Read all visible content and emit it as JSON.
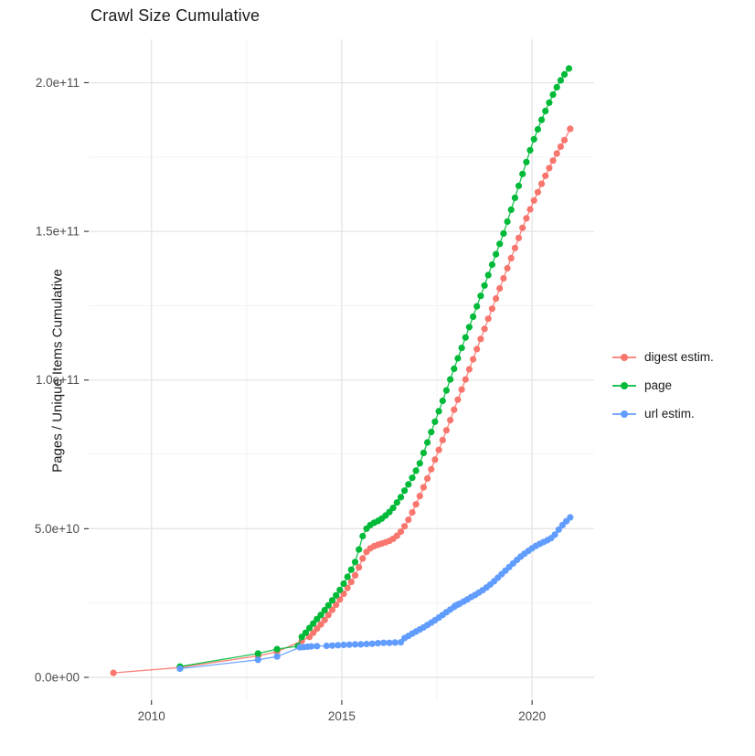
{
  "title": "Crawl Size Cumulative",
  "chart_data": {
    "type": "scatter",
    "title": "Crawl Size Cumulative",
    "xlabel": "",
    "ylabel": "Pages / Unique Items Cumulative",
    "legend_position": "right",
    "grid": true,
    "value_unit": "points given as [year, value_in_billions(1e9)]",
    "xlim": [
      2008.35,
      2021.63
    ],
    "ylim_e9": [
      -7.7,
      214.6
    ],
    "x_ticks": [
      {
        "v": 2010,
        "label": "2010"
      },
      {
        "v": 2015,
        "label": "2015"
      },
      {
        "v": 2020,
        "label": "2020"
      }
    ],
    "y_ticks": [
      {
        "v": 0,
        "label": "0.0e+00"
      },
      {
        "v": 50,
        "label": "5.0e+10"
      },
      {
        "v": 100,
        "label": "1.0e+11"
      },
      {
        "v": 150,
        "label": "1.5e+11"
      },
      {
        "v": 200,
        "label": "2.0e+11"
      }
    ],
    "x_minor": [
      2012.5,
      2017.5
    ],
    "y_minor_e9": [
      25,
      75,
      125,
      175
    ],
    "series": [
      {
        "name": "digest estim.",
        "color": "#F8766D",
        "points": [
          [
            2009.0,
            1.5
          ],
          [
            2010.75,
            3.3
          ],
          [
            2012.8,
            7.2
          ],
          [
            2013.3,
            8.6
          ],
          [
            2013.95,
            12.3
          ],
          [
            2014.15,
            13.6
          ],
          [
            2014.25,
            15.0
          ],
          [
            2014.35,
            16.4
          ],
          [
            2014.45,
            17.8
          ],
          [
            2014.55,
            19.3
          ],
          [
            2014.65,
            21.0
          ],
          [
            2014.75,
            22.7
          ],
          [
            2014.85,
            24.4
          ],
          [
            2014.95,
            26.2
          ],
          [
            2015.05,
            28.1
          ],
          [
            2015.15,
            30.1
          ],
          [
            2015.25,
            32.1
          ],
          [
            2015.35,
            34.3
          ],
          [
            2015.45,
            37.0
          ],
          [
            2015.55,
            40.0
          ],
          [
            2015.65,
            42.2
          ],
          [
            2015.75,
            43.4
          ],
          [
            2015.85,
            44.1
          ],
          [
            2015.95,
            44.6
          ],
          [
            2016.05,
            45.0
          ],
          [
            2016.15,
            45.4
          ],
          [
            2016.25,
            45.9
          ],
          [
            2016.35,
            46.6
          ],
          [
            2016.45,
            47.6
          ],
          [
            2016.55,
            49.0
          ],
          [
            2016.65,
            50.8
          ],
          [
            2016.75,
            53.0
          ],
          [
            2016.85,
            55.5
          ],
          [
            2016.95,
            58.2
          ],
          [
            2017.05,
            61.0
          ],
          [
            2017.15,
            63.9
          ],
          [
            2017.25,
            66.9
          ],
          [
            2017.35,
            70.0
          ],
          [
            2017.45,
            73.2
          ],
          [
            2017.55,
            76.5
          ],
          [
            2017.65,
            79.8
          ],
          [
            2017.75,
            83.1
          ],
          [
            2017.85,
            86.5
          ],
          [
            2017.95,
            90.0
          ],
          [
            2018.05,
            93.4
          ],
          [
            2018.15,
            96.8
          ],
          [
            2018.25,
            100.2
          ],
          [
            2018.35,
            103.6
          ],
          [
            2018.45,
            107.0
          ],
          [
            2018.55,
            110.4
          ],
          [
            2018.65,
            113.8
          ],
          [
            2018.75,
            117.2
          ],
          [
            2018.85,
            120.6
          ],
          [
            2018.95,
            124.0
          ],
          [
            2019.05,
            127.4
          ],
          [
            2019.15,
            130.8
          ],
          [
            2019.25,
            134.2
          ],
          [
            2019.35,
            137.6
          ],
          [
            2019.45,
            141.0
          ],
          [
            2019.55,
            144.4
          ],
          [
            2019.65,
            147.8
          ],
          [
            2019.75,
            151.2
          ],
          [
            2019.85,
            154.4
          ],
          [
            2019.95,
            157.4
          ],
          [
            2020.05,
            160.4
          ],
          [
            2020.15,
            163.2
          ],
          [
            2020.25,
            166.0
          ],
          [
            2020.35,
            168.7
          ],
          [
            2020.45,
            171.3
          ],
          [
            2020.55,
            173.8
          ],
          [
            2020.65,
            176.2
          ],
          [
            2020.75,
            178.5
          ],
          [
            2020.85,
            180.7
          ],
          [
            2021.0,
            184.5
          ]
        ]
      },
      {
        "name": "page",
        "color": "#00BA38",
        "points": [
          [
            2010.75,
            3.6
          ],
          [
            2012.8,
            8.0
          ],
          [
            2013.3,
            9.5
          ],
          [
            2013.85,
            10.5
          ],
          [
            2013.95,
            13.6
          ],
          [
            2014.05,
            15.0
          ],
          [
            2014.15,
            16.6
          ],
          [
            2014.25,
            18.1
          ],
          [
            2014.35,
            19.6
          ],
          [
            2014.45,
            21.0
          ],
          [
            2014.55,
            22.6
          ],
          [
            2014.65,
            24.2
          ],
          [
            2014.75,
            25.9
          ],
          [
            2014.85,
            27.6
          ],
          [
            2014.95,
            29.4
          ],
          [
            2015.05,
            31.5
          ],
          [
            2015.15,
            33.8
          ],
          [
            2015.25,
            36.2
          ],
          [
            2015.35,
            38.8
          ],
          [
            2015.45,
            43.0
          ],
          [
            2015.55,
            47.5
          ],
          [
            2015.65,
            50.0
          ],
          [
            2015.75,
            51.2
          ],
          [
            2015.85,
            52.0
          ],
          [
            2015.95,
            52.6
          ],
          [
            2016.05,
            53.4
          ],
          [
            2016.15,
            54.4
          ],
          [
            2016.25,
            55.6
          ],
          [
            2016.35,
            57.0
          ],
          [
            2016.45,
            58.8
          ],
          [
            2016.55,
            60.6
          ],
          [
            2016.65,
            62.8
          ],
          [
            2016.75,
            64.9
          ],
          [
            2016.85,
            67.1
          ],
          [
            2016.95,
            69.5
          ],
          [
            2017.05,
            72.0
          ],
          [
            2017.15,
            75.5
          ],
          [
            2017.25,
            79.0
          ],
          [
            2017.35,
            82.5
          ],
          [
            2017.45,
            86.0
          ],
          [
            2017.55,
            89.5
          ],
          [
            2017.65,
            93.0
          ],
          [
            2017.75,
            96.5
          ],
          [
            2017.85,
            100.2
          ],
          [
            2017.95,
            103.8
          ],
          [
            2018.05,
            107.3
          ],
          [
            2018.15,
            110.8
          ],
          [
            2018.25,
            114.3
          ],
          [
            2018.35,
            117.8
          ],
          [
            2018.45,
            121.3
          ],
          [
            2018.55,
            124.8
          ],
          [
            2018.65,
            128.3
          ],
          [
            2018.75,
            131.8
          ],
          [
            2018.85,
            135.3
          ],
          [
            2018.95,
            138.8
          ],
          [
            2019.05,
            142.3
          ],
          [
            2019.15,
            145.8
          ],
          [
            2019.25,
            149.3
          ],
          [
            2019.35,
            153.3
          ],
          [
            2019.45,
            157.3
          ],
          [
            2019.55,
            161.3
          ],
          [
            2019.65,
            165.3
          ],
          [
            2019.75,
            169.3
          ],
          [
            2019.85,
            173.3
          ],
          [
            2019.95,
            177.3
          ],
          [
            2020.05,
            181.0
          ],
          [
            2020.15,
            184.3
          ],
          [
            2020.25,
            187.5
          ],
          [
            2020.35,
            190.5
          ],
          [
            2020.45,
            193.3
          ],
          [
            2020.55,
            196.0
          ],
          [
            2020.65,
            198.5
          ],
          [
            2020.75,
            200.8
          ],
          [
            2020.85,
            202.8
          ],
          [
            2020.97,
            204.8
          ]
        ]
      },
      {
        "name": "url estim.",
        "color": "#619CFF",
        "points": [
          [
            2010.75,
            2.9
          ],
          [
            2012.8,
            5.9
          ],
          [
            2013.3,
            7.0
          ],
          [
            2013.9,
            10.1
          ],
          [
            2014.0,
            10.2
          ],
          [
            2014.1,
            10.3
          ],
          [
            2014.2,
            10.4
          ],
          [
            2014.35,
            10.5
          ],
          [
            2014.6,
            10.6
          ],
          [
            2014.75,
            10.7
          ],
          [
            2014.9,
            10.8
          ],
          [
            2015.05,
            10.9
          ],
          [
            2015.2,
            11.0
          ],
          [
            2015.35,
            11.1
          ],
          [
            2015.5,
            11.1
          ],
          [
            2015.65,
            11.2
          ],
          [
            2015.8,
            11.3
          ],
          [
            2015.95,
            11.5
          ],
          [
            2016.1,
            11.6
          ],
          [
            2016.25,
            11.6
          ],
          [
            2016.4,
            11.7
          ],
          [
            2016.55,
            11.8
          ],
          [
            2016.65,
            13.2
          ],
          [
            2016.75,
            13.9
          ],
          [
            2016.85,
            14.7
          ],
          [
            2016.95,
            15.4
          ],
          [
            2017.05,
            16.1
          ],
          [
            2017.15,
            16.8
          ],
          [
            2017.25,
            17.6
          ],
          [
            2017.35,
            18.4
          ],
          [
            2017.45,
            19.2
          ],
          [
            2017.55,
            20.1
          ],
          [
            2017.65,
            21.0
          ],
          [
            2017.75,
            21.9
          ],
          [
            2017.85,
            22.8
          ],
          [
            2017.95,
            23.7
          ],
          [
            2018.0,
            24.2
          ],
          [
            2018.05,
            24.5
          ],
          [
            2018.1,
            24.8
          ],
          [
            2018.2,
            25.5
          ],
          [
            2018.3,
            26.2
          ],
          [
            2018.4,
            27.0
          ],
          [
            2018.5,
            27.7
          ],
          [
            2018.6,
            28.5
          ],
          [
            2018.7,
            29.3
          ],
          [
            2018.8,
            30.2
          ],
          [
            2018.9,
            31.2
          ],
          [
            2019.0,
            32.3
          ],
          [
            2019.1,
            33.5
          ],
          [
            2019.2,
            34.7
          ],
          [
            2019.3,
            35.9
          ],
          [
            2019.4,
            37.1
          ],
          [
            2019.5,
            38.3
          ],
          [
            2019.6,
            39.5
          ],
          [
            2019.7,
            40.6
          ],
          [
            2019.8,
            41.6
          ],
          [
            2019.9,
            42.5
          ],
          [
            2020.0,
            43.4
          ],
          [
            2020.1,
            44.2
          ],
          [
            2020.2,
            44.9
          ],
          [
            2020.3,
            45.5
          ],
          [
            2020.4,
            46.1
          ],
          [
            2020.5,
            46.8
          ],
          [
            2020.6,
            48.0
          ],
          [
            2020.7,
            49.7
          ],
          [
            2020.8,
            51.2
          ],
          [
            2020.9,
            52.5
          ],
          [
            2021.0,
            53.8
          ]
        ]
      }
    ],
    "style": {
      "grid_major_color": "#e4e4e4",
      "grid_minor_color": "#f3f3f3",
      "tick_color": "#333333",
      "tick_label_color": "#4d4d4d",
      "point_radius": 3.6
    }
  }
}
